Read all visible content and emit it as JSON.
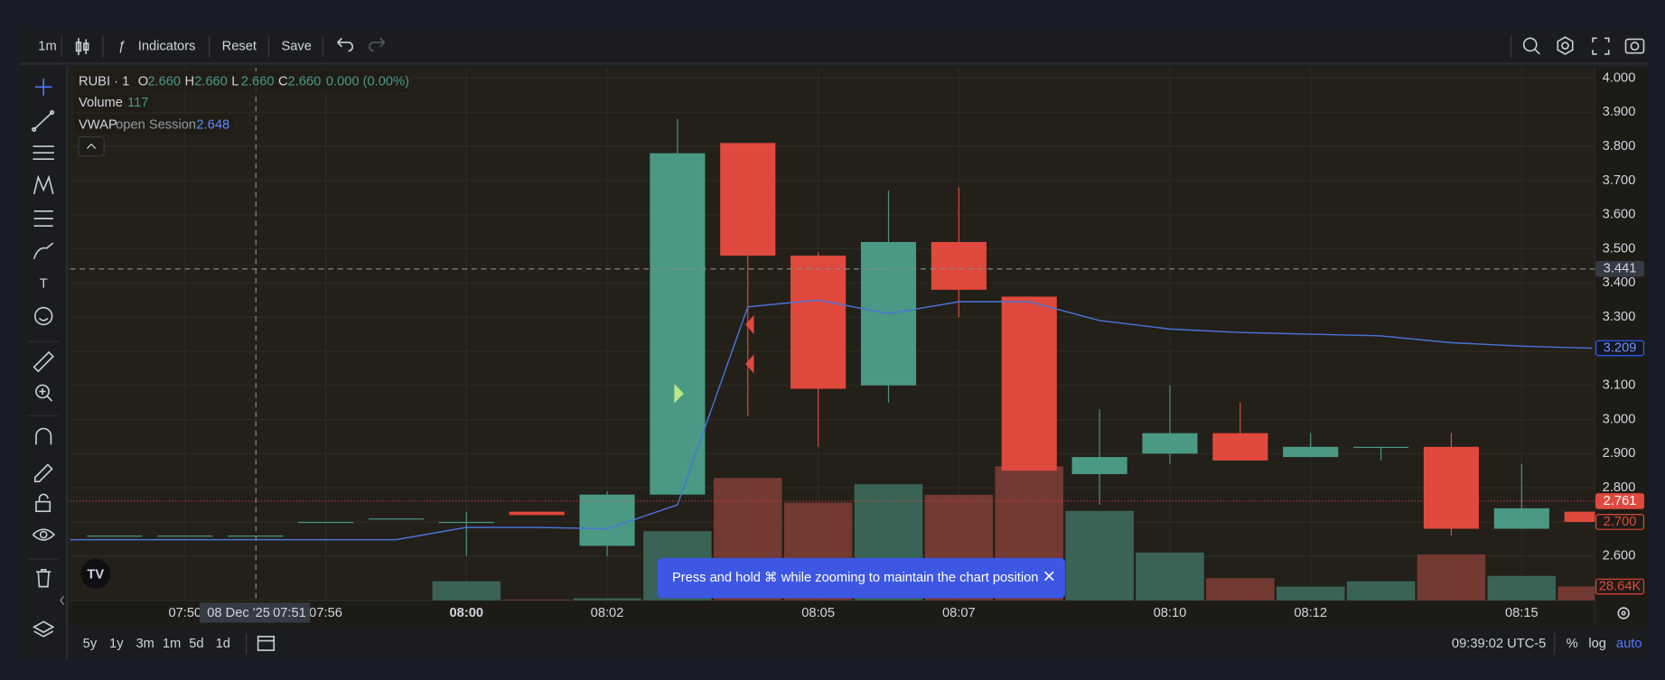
{
  "chart_data": {
    "type": "candlestick",
    "title": "RUBI · 1",
    "ohlc_legend": [
      {
        "key": "O",
        "value": "2.660"
      },
      {
        "key": "H",
        "value": "2.660"
      },
      {
        "key": "L",
        "value": "2.660"
      },
      {
        "key": "C",
        "value": "2.660"
      }
    ],
    "change": "0.000 (0.00%)",
    "categories": [
      null,
      "07:50",
      null,
      "07:56",
      null,
      "08:00",
      null,
      "08:02",
      null,
      null,
      "08:05",
      null,
      "08:07",
      null,
      null,
      "08:10",
      null,
      "08:12",
      null,
      null,
      "08:15",
      null
    ],
    "open": [
      2.66,
      2.66,
      2.66,
      2.7,
      2.71,
      2.7,
      2.73,
      2.63,
      2.78,
      3.81,
      3.48,
      3.1,
      3.52,
      3.36,
      2.84,
      2.9,
      2.96,
      2.89,
      2.92,
      2.92,
      2.68,
      2.73
    ],
    "high": [
      2.66,
      2.66,
      2.66,
      2.7,
      2.71,
      2.73,
      2.73,
      2.79,
      3.88,
      3.81,
      3.49,
      3.67,
      3.68,
      3.36,
      3.03,
      3.1,
      3.05,
      2.96,
      2.92,
      2.96,
      2.87,
      2.73
    ],
    "low": [
      2.66,
      2.66,
      2.66,
      2.7,
      2.71,
      2.6,
      2.72,
      2.6,
      2.78,
      3.01,
      2.92,
      3.05,
      3.3,
      2.85,
      2.75,
      2.87,
      2.88,
      2.89,
      2.88,
      2.66,
      2.68,
      2.7
    ],
    "close": [
      2.66,
      2.66,
      2.66,
      2.7,
      2.71,
      2.7,
      2.72,
      2.78,
      3.78,
      3.48,
      3.09,
      3.52,
      3.38,
      2.85,
      2.89,
      2.96,
      2.88,
      2.92,
      2.92,
      2.68,
      2.74,
      2.7
    ],
    "up_color": "#4a9985",
    "down_color": "#e0493d",
    "series": [
      {
        "name": "Volume",
        "legend_value": "117",
        "axis": "y2",
        "color_up": "#3a6355",
        "color_down": "#733933",
        "values": [
          120,
          110,
          117,
          300,
          250,
          39600,
          2000,
          4400,
          143000,
          253000,
          202000,
          240000,
          218000,
          277000,
          185000,
          99000,
          46000,
          28600,
          39600,
          95000,
          50600,
          28640
        ]
      },
      {
        "name": "VWAP",
        "params": "open Session",
        "legend_value": "2.648",
        "color": "#4a74d9",
        "values": [
          2.648,
          2.648,
          2.648,
          2.648,
          2.648,
          2.684,
          2.684,
          2.68,
          2.75,
          3.33,
          3.35,
          3.31,
          3.345,
          3.345,
          3.29,
          3.265,
          3.255,
          3.25,
          3.245,
          3.225,
          3.215,
          3.209
        ]
      }
    ],
    "ylim": [
      2.47,
      4.03
    ],
    "y2lim": [
      0,
      1100000
    ],
    "yticks": [
      {
        "value": 2.6,
        "label": "2.600"
      },
      {
        "value": 2.7,
        "label": "2.700"
      },
      {
        "value": 2.8,
        "label": "2.800"
      },
      {
        "value": 2.9,
        "label": "2.900"
      },
      {
        "value": 3.0,
        "label": "3.000"
      },
      {
        "value": 3.1,
        "label": "3.100"
      },
      {
        "value": 3.2,
        "label": "3.200"
      },
      {
        "value": 3.3,
        "label": "3.300"
      },
      {
        "value": 3.4,
        "label": "3.400"
      },
      {
        "value": 3.5,
        "label": "3.500"
      },
      {
        "value": 3.6,
        "label": "3.600"
      },
      {
        "value": 3.7,
        "label": "3.700"
      },
      {
        "value": 3.8,
        "label": "3.800"
      },
      {
        "value": 3.9,
        "label": "3.900"
      },
      {
        "value": 4.0,
        "label": "4.000"
      }
    ],
    "grid": true,
    "axis_labels": [
      {
        "value": 3.441,
        "label": "3.441",
        "axis": "y",
        "fill": "#363a45",
        "stroke": "#363a45",
        "text_color": "#d1d4dc"
      },
      {
        "value": 3.209,
        "label": "3.209",
        "axis": "y",
        "fill": "#131722",
        "stroke": "#2962ff",
        "text_color": "#6b93ff"
      },
      {
        "value": 2.761,
        "label": "2.761",
        "axis": "y",
        "fill": "#e0493d",
        "stroke": "#e0493d",
        "text_color": "#ffffff"
      },
      {
        "value": 2.7,
        "label": "2.700",
        "axis": "y",
        "fill": "#1f1c17",
        "stroke": "#e0493d",
        "text_color": "#e0493d"
      },
      {
        "value": 28640,
        "label": "28.64K",
        "axis": "y2",
        "fill": "#1f1c17",
        "stroke": "#e0493d",
        "text_color": "#e0493d"
      }
    ],
    "crosshair": {
      "price": 3.441,
      "date_label": "08 Dec '25",
      "time_label": "07:51"
    }
  },
  "toolbar": {
    "interval": "1m",
    "indicators": "Indicators",
    "reset": "Reset",
    "save": "Save"
  },
  "bottom_bar": {
    "ranges": [
      "5y",
      "1y",
      "3m",
      "1m",
      "5d",
      "1d"
    ],
    "clock": "09:39:02 UTC-5",
    "percent": "%",
    "log": "log",
    "auto": "auto"
  },
  "toast": "Press and hold ⌘ while zooming to maintain the chart position"
}
